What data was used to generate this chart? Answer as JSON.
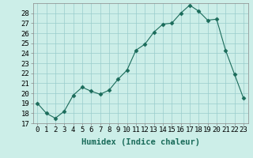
{
  "x": [
    0,
    1,
    2,
    3,
    4,
    5,
    6,
    7,
    8,
    9,
    10,
    11,
    12,
    13,
    14,
    15,
    16,
    17,
    18,
    19,
    20,
    21,
    22,
    23
  ],
  "y": [
    19.0,
    18.0,
    17.5,
    18.2,
    19.8,
    20.6,
    20.2,
    19.9,
    20.3,
    21.4,
    22.3,
    24.3,
    24.9,
    26.1,
    26.9,
    27.0,
    28.0,
    28.8,
    28.2,
    27.3,
    27.4,
    24.3,
    21.9,
    19.5
  ],
  "line_color": "#1a6b5a",
  "marker": "D",
  "marker_size": 2.5,
  "bg_color": "#cceee8",
  "grid_color": "#99cccc",
  "xlabel": "Humidex (Indice chaleur)",
  "ylim": [
    17,
    29
  ],
  "xlim": [
    -0.5,
    23.5
  ],
  "yticks": [
    17,
    18,
    19,
    20,
    21,
    22,
    23,
    24,
    25,
    26,
    27,
    28
  ],
  "xtick_labels": [
    "0",
    "1",
    "2",
    "3",
    "4",
    "5",
    "6",
    "7",
    "8",
    "9",
    "10",
    "11",
    "12",
    "13",
    "14",
    "15",
    "16",
    "17",
    "18",
    "19",
    "20",
    "21",
    "22",
    "23"
  ],
  "xlabel_fontsize": 7.5,
  "tick_fontsize": 6.5
}
